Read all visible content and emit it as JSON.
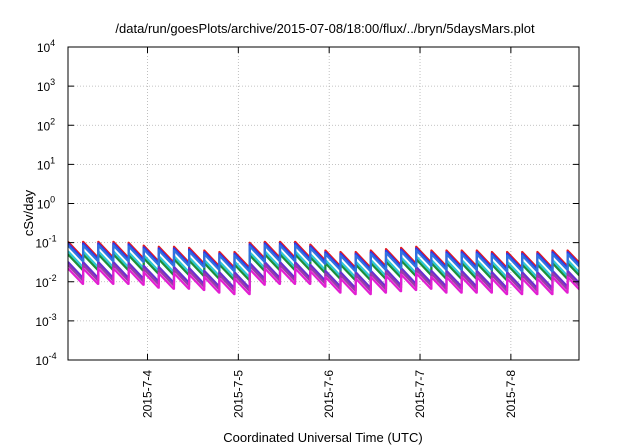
{
  "chart_data": {
    "type": "line",
    "title": "/data/run/goesPlots/archive/2015-07-08/18:00/flux/../bryn/5daysMars.plot",
    "xlabel": "Coordinated Universal Time (UTC)",
    "ylabel": "cSv/day",
    "yscale": "log",
    "ylim": [
      0.0001,
      10000
    ],
    "xlim": [
      "2015-07-03T03:00",
      "2015-07-08T18:00"
    ],
    "grid": true,
    "y_ticks": [
      {
        "base": "10",
        "exp": "4"
      },
      {
        "base": "10",
        "exp": "3"
      },
      {
        "base": "10",
        "exp": "2"
      },
      {
        "base": "10",
        "exp": "1"
      },
      {
        "base": "10",
        "exp": "0"
      },
      {
        "base": "10",
        "exp": "-1"
      },
      {
        "base": "10",
        "exp": "-2"
      },
      {
        "base": "10",
        "exp": "-3"
      },
      {
        "base": "10",
        "exp": "-4"
      }
    ],
    "x_ticks": [
      "2015-7-4",
      "2015-7-5",
      "2015-7-6",
      "2015-7-7",
      "2015-7-8"
    ],
    "pattern": {
      "cycles_per_day": 6,
      "decay_ratio": 0.4,
      "envelope": [
        1.0,
        1.0,
        1.0,
        1.0,
        0.95,
        0.8,
        0.75,
        0.75,
        0.7,
        0.6,
        0.55,
        0.55,
        0.95,
        1.0,
        1.0,
        1.0,
        0.85,
        0.6,
        0.55,
        0.55,
        0.6,
        0.65,
        0.7,
        0.75,
        0.6,
        0.6,
        0.6,
        0.6,
        0.55,
        0.55,
        0.55,
        0.55,
        0.6,
        0.6,
        0.65,
        0.6,
        0.6,
        0.6,
        0.6,
        0.6,
        0.6,
        0.65,
        0.65,
        0.7,
        0.7,
        0.7,
        0.65,
        0.65,
        0.65,
        0.65,
        0.6,
        0.6,
        0.6,
        0.6,
        0.6,
        0.6,
        0.6,
        0.6,
        0.6,
        0.6,
        0.6,
        0.6,
        0.6,
        0.6,
        0.6,
        0.6,
        0.6,
        0.6,
        0.6,
        0.6,
        0.6,
        0.6,
        0.6,
        0.6,
        0.6,
        0.6,
        0.6,
        0.6,
        0.6,
        0.6,
        0.6,
        0.6,
        0.6,
        0.6,
        0.6,
        0.6,
        0.6,
        0.6,
        0.6,
        0.6
      ]
    },
    "series": [
      {
        "color": "#e5191e",
        "peak": 0.105
      },
      {
        "color": "#2f36e8",
        "peak": 0.095
      },
      {
        "color": "#2ec7d6",
        "peak": 0.06
      },
      {
        "color": "#1a8f3a",
        "peak": 0.05
      },
      {
        "color": "#6a2fd0",
        "peak": 0.032
      },
      {
        "color": "#9a3aa8",
        "peak": 0.027
      },
      {
        "color": "#e21fd2",
        "peak": 0.022
      },
      {
        "color": "#2f73e0",
        "peak": 0.085
      }
    ]
  }
}
